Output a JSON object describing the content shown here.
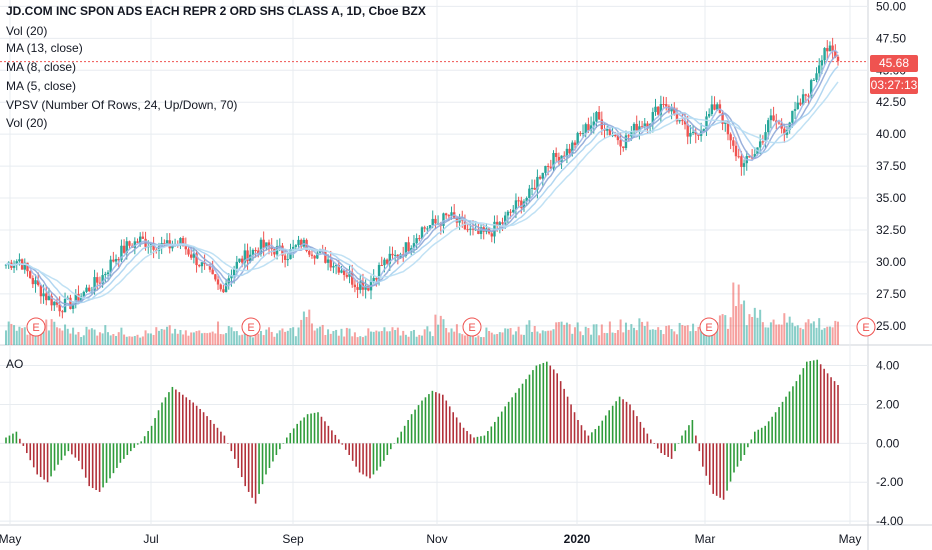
{
  "legend": {
    "title": "JD.COM INC SPON ADS EACH REPR 2 ORD SHS CLASS A, 1D, Cboe BZX",
    "lines": [
      "Vol (20)",
      "MA (13, close)",
      "MA (8, close)",
      "MA (5, close)",
      "VPSV (Number Of Rows, 24, Up/Down, 70)",
      "Vol (20)"
    ]
  },
  "price_tags": {
    "last": "45.68",
    "countdown": "03:27:13"
  },
  "ao_label": "AO",
  "colors": {
    "up": "#26a69a",
    "down": "#ef5350",
    "ao_up": "#2e9b3a",
    "ao_down": "#b2313a",
    "ma": "#7fb6e6",
    "grid": "#e8ecf0"
  },
  "chart_data": {
    "type": "candlestick",
    "x_ticks": [
      "May",
      "Jul",
      "Sep",
      "Nov",
      "2020",
      "Mar",
      "May"
    ],
    "y_ticks": [
      "50.00",
      "47.50",
      "45.00",
      "42.50",
      "40.00",
      "37.50",
      "35.00",
      "32.50",
      "30.00",
      "27.50",
      "25.00"
    ],
    "ylim": [
      23.5,
      50.5
    ],
    "earnings_markers": [
      "E",
      "E",
      "E",
      "E",
      "E"
    ],
    "close_series_weekly": [
      29.8,
      30.2,
      28.5,
      27.3,
      26.5,
      26.8,
      27.8,
      28.6,
      30.2,
      31.2,
      31.7,
      31.4,
      31.2,
      31.5,
      30.4,
      29.2,
      27.8,
      29.6,
      30.6,
      31.2,
      31.0,
      30.6,
      31.5,
      30.8,
      30.2,
      29.5,
      28.4,
      28.2,
      29.8,
      30.4,
      31.3,
      32.6,
      33.0,
      33.6,
      32.8,
      32.1,
      32.3,
      33.1,
      34.4,
      35.2,
      37.3,
      38.2,
      38.8,
      40.2,
      41.3,
      40.2,
      39.4,
      40.6,
      41.2,
      42.6,
      41.3,
      39.6,
      40.8,
      42.5,
      39.2,
      37.5,
      38.9,
      41.2,
      40.4,
      42.0,
      43.8,
      46.9,
      45.68
    ],
    "ao": {
      "yticks": [
        "4.00",
        "2.00",
        "0.00",
        "-2.00",
        "-4.00"
      ],
      "ylim": [
        -4.2,
        4.8
      ],
      "values_weekly": [
        0.3,
        0.6,
        -0.5,
        -1.6,
        -2.0,
        -1.1,
        -0.4,
        -0.9,
        -2.2,
        -2.5,
        -1.8,
        -1.0,
        -0.4,
        0.1,
        0.9,
        2.1,
        2.9,
        2.5,
        2.1,
        1.6,
        1.0,
        0.4,
        -0.8,
        -2.2,
        -3.1,
        -1.6,
        -0.6,
        0.3,
        1.0,
        1.5,
        1.6,
        0.9,
        0.2,
        -0.6,
        -1.5,
        -1.8,
        -1.2,
        -0.3,
        0.6,
        1.5,
        2.2,
        2.7,
        2.5,
        1.6,
        0.8,
        0.3,
        0.4,
        1.1,
        1.9,
        2.6,
        3.3,
        4.0,
        4.2,
        3.6,
        2.4,
        1.2,
        0.4,
        0.9,
        1.7,
        2.4,
        2.0,
        1.1,
        0.2,
        -0.5,
        -0.8,
        0.4,
        1.2,
        -1.2,
        -2.6,
        -2.9,
        -1.5,
        -0.6,
        0.6,
        0.9,
        1.6,
        2.4,
        3.2,
        4.2,
        4.3,
        3.6,
        3.0
      ],
      "values_note_removed": true
    },
    "volume_weekly": [
      0.3,
      0.25,
      0.28,
      0.32,
      0.27,
      0.22,
      0.24,
      0.26,
      0.21,
      0.2,
      0.19,
      0.22,
      0.24,
      0.18,
      0.2,
      0.3,
      0.26,
      0.23,
      0.21,
      0.22,
      0.2,
      0.24,
      0.45,
      0.25,
      0.21,
      0.23,
      0.19,
      0.2,
      0.22,
      0.21,
      0.2,
      0.24,
      0.4,
      0.26,
      0.22,
      0.21,
      0.23,
      0.25,
      0.26,
      0.3,
      0.32,
      0.28,
      0.3,
      0.25,
      0.27,
      0.32,
      0.35,
      0.33,
      0.3,
      0.28,
      0.29,
      0.26,
      0.33,
      0.4,
      0.75,
      0.55,
      0.45,
      0.42,
      0.4,
      0.38,
      0.36,
      0.32,
      0.28,
      0.2
    ]
  }
}
